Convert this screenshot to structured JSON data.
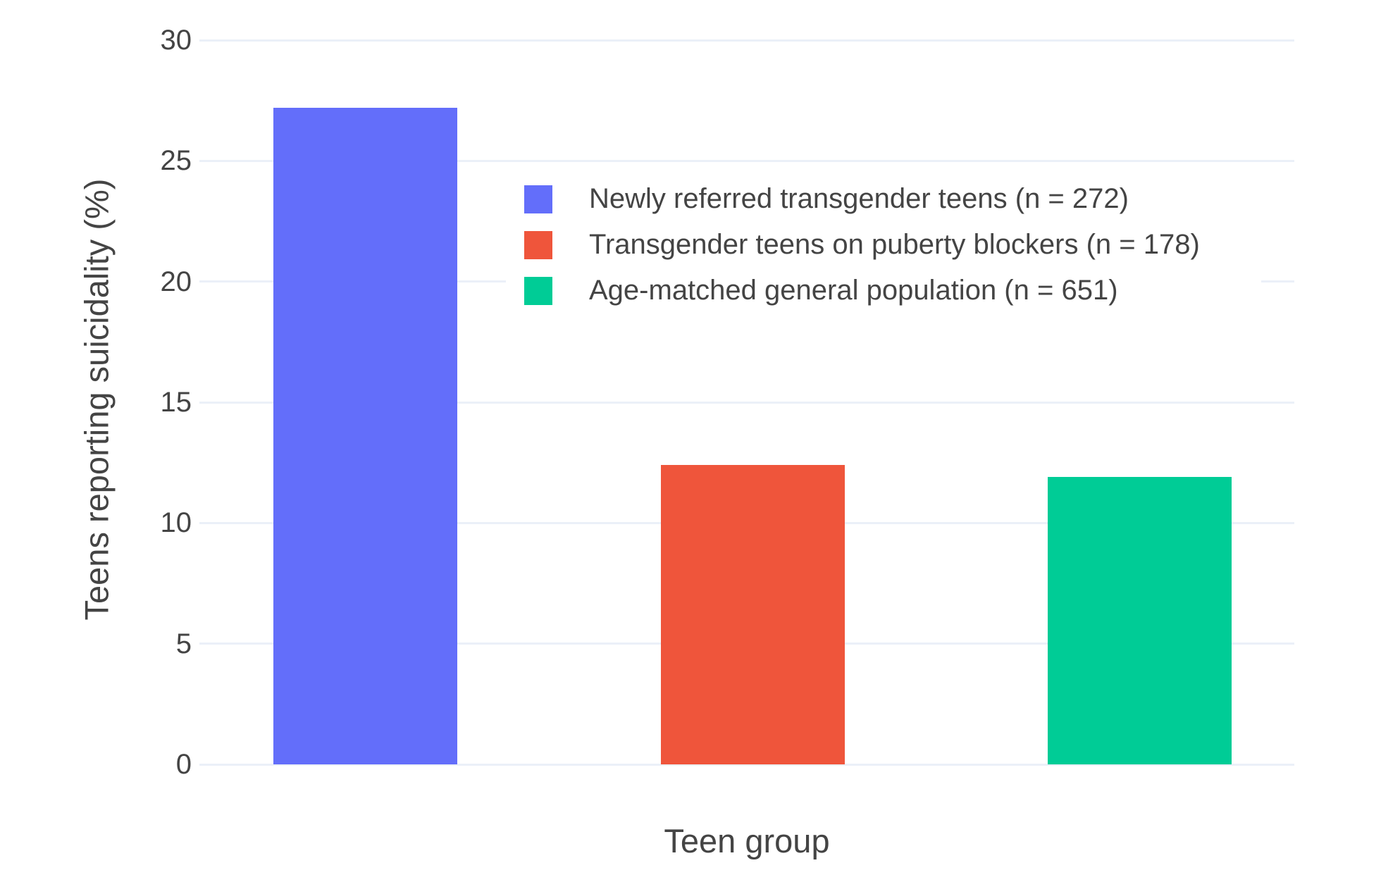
{
  "chart_data": {
    "type": "bar",
    "title": "",
    "xlabel": "Teen group",
    "ylabel": "Teens reporting suicidality (%)",
    "ylim": [
      0,
      30
    ],
    "yticks": [
      0,
      5,
      10,
      15,
      20,
      25,
      30
    ],
    "grid": true,
    "legend_position": "inside-top-center",
    "categories": [
      "Newly referred transgender teens (n = 272)",
      "Transgender teens on puberty blockers (n = 178)",
      "Age-matched general population (n = 651)"
    ],
    "values": [
      27.2,
      12.4,
      11.9
    ],
    "series": [
      {
        "name": "Newly referred transgender teens (n = 272)",
        "values": [
          27.2
        ],
        "color": "#636EFA"
      },
      {
        "name": "Transgender teens on puberty blockers (n = 178)",
        "values": [
          12.4
        ],
        "color": "#EF553B"
      },
      {
        "name": "Age-matched general population (n = 651)",
        "values": [
          11.9
        ],
        "color": "#00CC96"
      }
    ],
    "legend": [
      {
        "label": "Newly referred transgender teens (n = 272)",
        "color": "#636EFA"
      },
      {
        "label": "Transgender teens on puberty blockers (n = 178)",
        "color": "#EF553B"
      },
      {
        "label": "Age-matched general population (n = 651)",
        "color": "#00CC96"
      }
    ]
  },
  "colors": {
    "background": "#FFFFFF",
    "gridline": "#EBF0F8",
    "text": "#444444",
    "bar_blue": "#636EFA",
    "bar_red": "#EF553B",
    "bar_green": "#00CC96"
  }
}
